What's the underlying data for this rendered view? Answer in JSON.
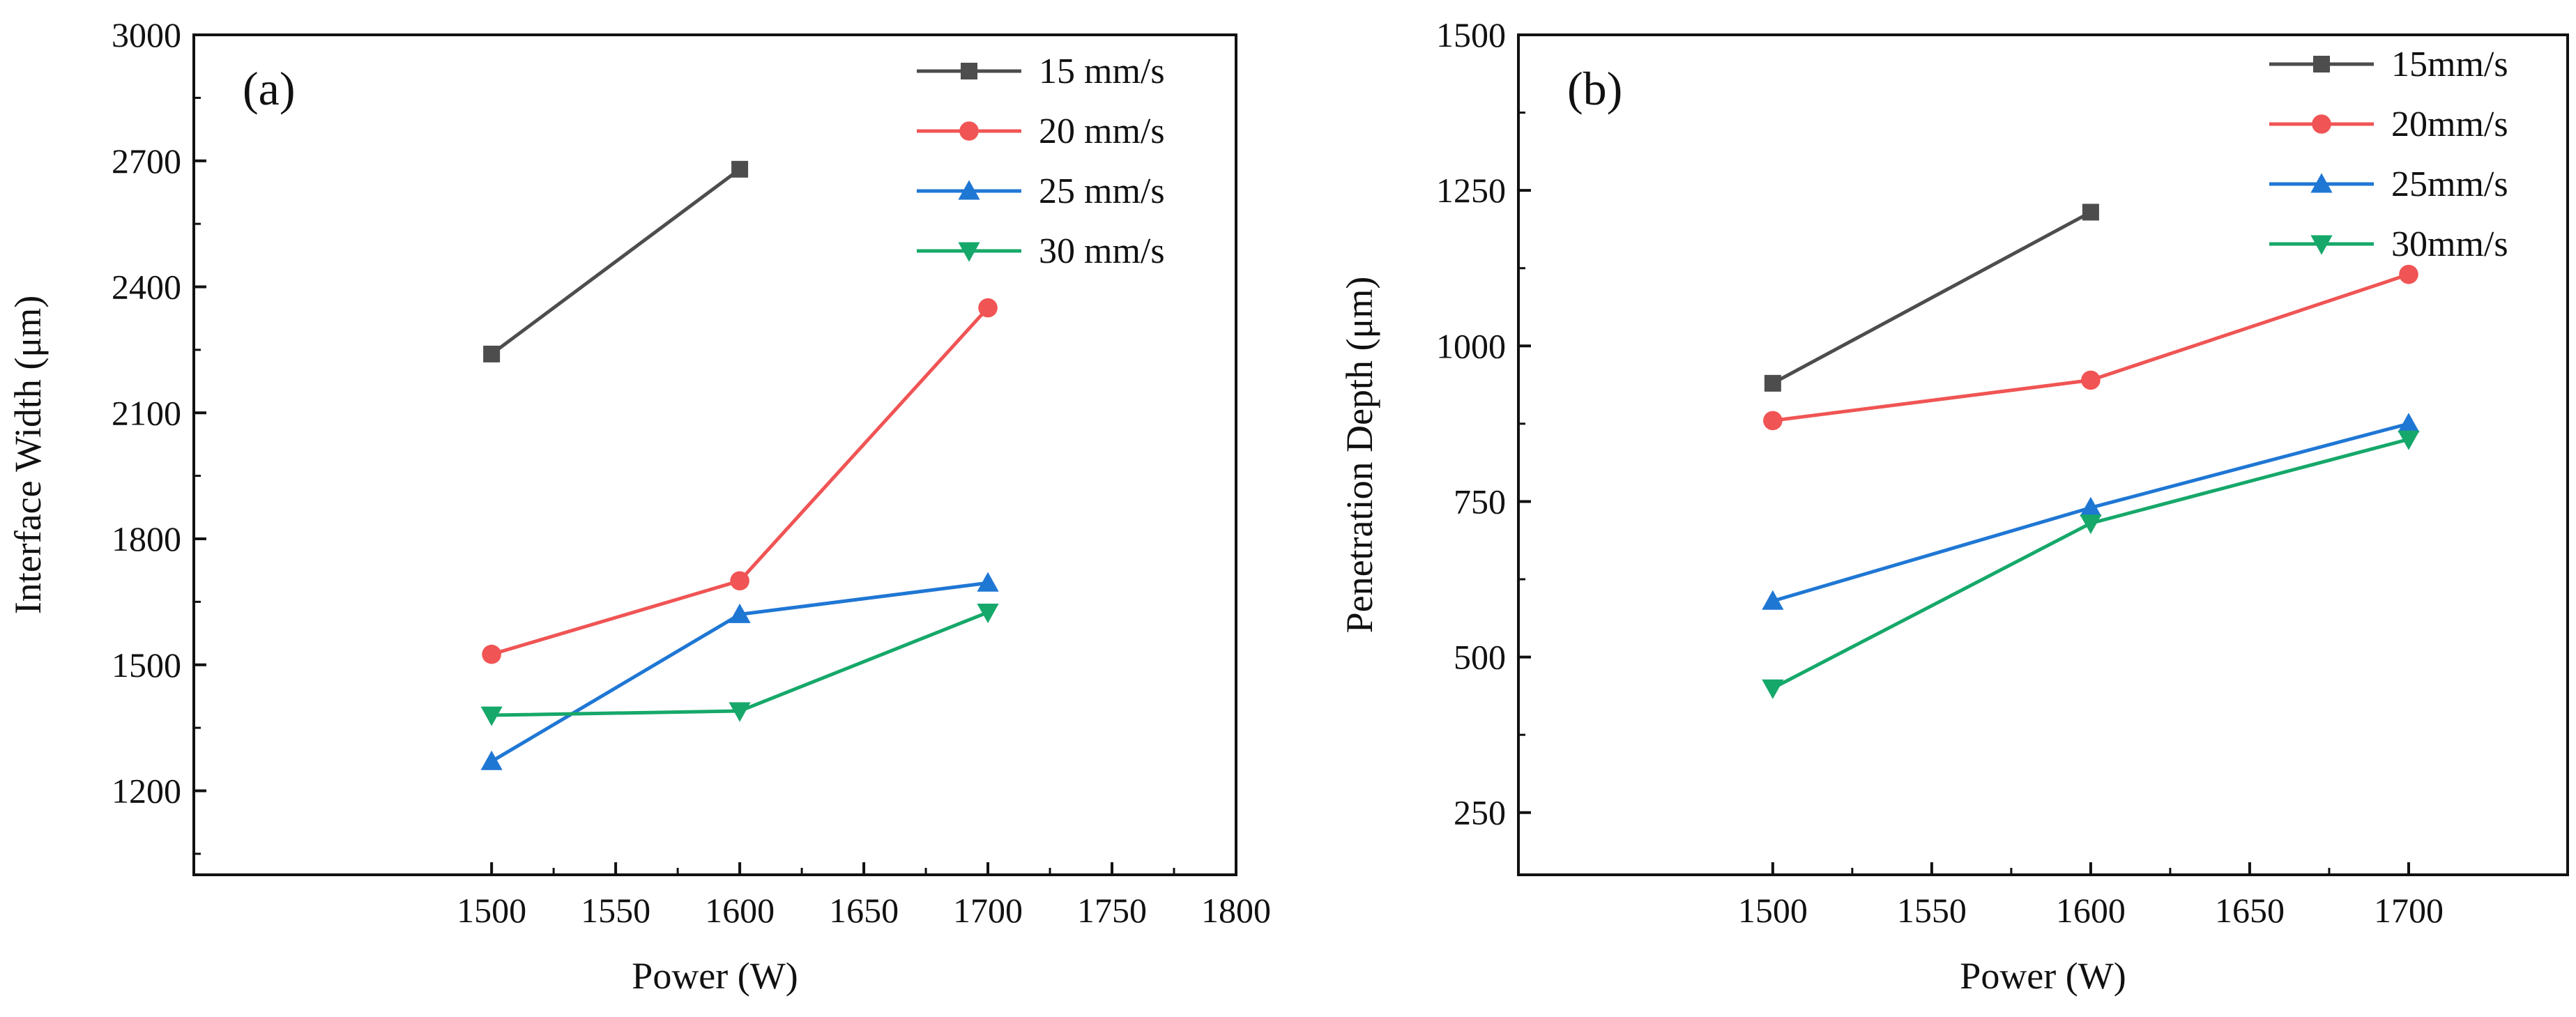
{
  "chart_data": [
    {
      "type": "line",
      "panel_label": "(a)",
      "xlabel": "Power (W)",
      "ylabel": "Interface Width (μm)",
      "xlim": [
        1380,
        1800
      ],
      "ylim": [
        1000,
        3000
      ],
      "xticks": [
        1500,
        1550,
        1600,
        1650,
        1700,
        1750,
        1800
      ],
      "yticks": [
        1200,
        1500,
        1800,
        2100,
        2400,
        2700,
        3000
      ],
      "grid": false,
      "legend_position": "top-right",
      "series": [
        {
          "name": "15 mm/s",
          "color": "#4d4d4d",
          "marker": "square",
          "x": [
            1500,
            1600
          ],
          "values": [
            2240,
            2680
          ]
        },
        {
          "name": "20 mm/s",
          "color": "#f05454",
          "marker": "circle",
          "x": [
            1500,
            1600,
            1700
          ],
          "values": [
            1525,
            1700,
            2350
          ]
        },
        {
          "name": "25 mm/s",
          "color": "#1f77d4",
          "marker": "triangle-up",
          "x": [
            1500,
            1600,
            1700
          ],
          "values": [
            1270,
            1620,
            1695
          ]
        },
        {
          "name": "30 mm/s",
          "color": "#16a86a",
          "marker": "triangle-down",
          "x": [
            1500,
            1600,
            1700
          ],
          "values": [
            1380,
            1390,
            1625
          ]
        }
      ]
    },
    {
      "type": "line",
      "panel_label": "(b)",
      "xlabel": "Power (W)",
      "ylabel": "Penetration Depth (μm)",
      "xlim": [
        1420,
        1750
      ],
      "ylim": [
        150,
        1500
      ],
      "xticks": [
        1500,
        1550,
        1600,
        1650,
        1700
      ],
      "yticks": [
        250,
        500,
        750,
        1000,
        1250,
        1500
      ],
      "grid": false,
      "legend_position": "top-right",
      "series": [
        {
          "name": "15mm/s",
          "color": "#4d4d4d",
          "marker": "square",
          "x": [
            1500,
            1600
          ],
          "values": [
            940,
            1215
          ]
        },
        {
          "name": "20mm/s",
          "color": "#f05454",
          "marker": "circle",
          "x": [
            1500,
            1600,
            1700
          ],
          "values": [
            880,
            945,
            1115
          ]
        },
        {
          "name": "25mm/s",
          "color": "#1f77d4",
          "marker": "triangle-up",
          "x": [
            1500,
            1600,
            1700
          ],
          "values": [
            590,
            740,
            875
          ]
        },
        {
          "name": "30mm/s",
          "color": "#16a86a",
          "marker": "triangle-down",
          "x": [
            1500,
            1600,
            1700
          ],
          "values": [
            450,
            715,
            850
          ]
        }
      ]
    }
  ]
}
